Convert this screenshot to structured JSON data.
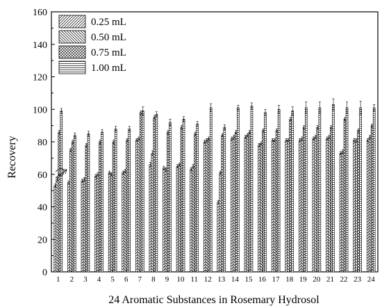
{
  "chart_data": {
    "type": "bar",
    "title": "",
    "xlabel": "24 Aromatic Substances in Rosemary Hydrosol",
    "ylabel": "Recovery",
    "ylim": [
      0,
      160
    ],
    "yticks": [
      0,
      20,
      40,
      60,
      80,
      100,
      120,
      140,
      160
    ],
    "grid": false,
    "legend_position": "top-left",
    "categories": [
      "1",
      "2",
      "3",
      "4",
      "5",
      "6",
      "7",
      "8",
      "9",
      "10",
      "11",
      "12",
      "13",
      "14",
      "15",
      "16",
      "17",
      "18",
      "19",
      "20",
      "21",
      "22",
      "23",
      "24"
    ],
    "series": [
      {
        "name": "0.25 mL",
        "pattern": "diagonal-left",
        "values": [
          53,
          55,
          56,
          59,
          61,
          61,
          81,
          66,
          64,
          65,
          63,
          80,
          43,
          82,
          83,
          78,
          81,
          81,
          81,
          82,
          82,
          73,
          81,
          81
        ]
      },
      {
        "name": "0.50 mL",
        "pattern": "diagonal-right",
        "values": [
          57,
          75,
          57,
          60,
          60,
          62,
          82,
          73,
          63,
          66,
          65,
          81,
          61,
          83,
          84,
          79,
          81,
          81,
          82,
          83,
          83,
          74,
          81,
          83
        ]
      },
      {
        "name": "0.75 mL",
        "pattern": "crosshatch",
        "values": [
          86,
          80,
          78,
          80,
          80,
          81,
          98,
          95,
          86,
          89,
          85,
          82,
          84,
          86,
          86,
          87,
          87,
          94,
          89,
          89,
          89,
          94,
          87,
          90
        ]
      },
      {
        "name": "1.00 mL",
        "pattern": "horizontal",
        "values": [
          99,
          84,
          85,
          86,
          88,
          88,
          99,
          97,
          92,
          94,
          91,
          101,
          89,
          101,
          102,
          98,
          100,
          99,
          101,
          101,
          103,
          101,
          101,
          101
        ]
      }
    ],
    "errors": {
      "0.25 mL": [
        1,
        1,
        1,
        1,
        1,
        1,
        1,
        1.5,
        1,
        1,
        1,
        1,
        1,
        1,
        1,
        1,
        1,
        1,
        1,
        1,
        1,
        1,
        1,
        1
      ],
      "0.50 mL": [
        1,
        1,
        1,
        1,
        1,
        1,
        1,
        1.5,
        1,
        1,
        1,
        1,
        1,
        1,
        1,
        1,
        1,
        1,
        1,
        1,
        1,
        1,
        1,
        1
      ],
      "0.75 mL": [
        1,
        1,
        1,
        1,
        1,
        1,
        1,
        1,
        1,
        1,
        1,
        1,
        1,
        1,
        1,
        1,
        1,
        1,
        1,
        1,
        1,
        1,
        1,
        1
      ],
      "1.00 mL": [
        1.5,
        1.5,
        1.5,
        1.5,
        1.5,
        1.5,
        2.5,
        1.5,
        2,
        1.5,
        1.5,
        2.5,
        1.5,
        1.5,
        2,
        2,
        2.5,
        2.5,
        3.5,
        3.5,
        3.5,
        3.5,
        4,
        2
      ]
    }
  }
}
